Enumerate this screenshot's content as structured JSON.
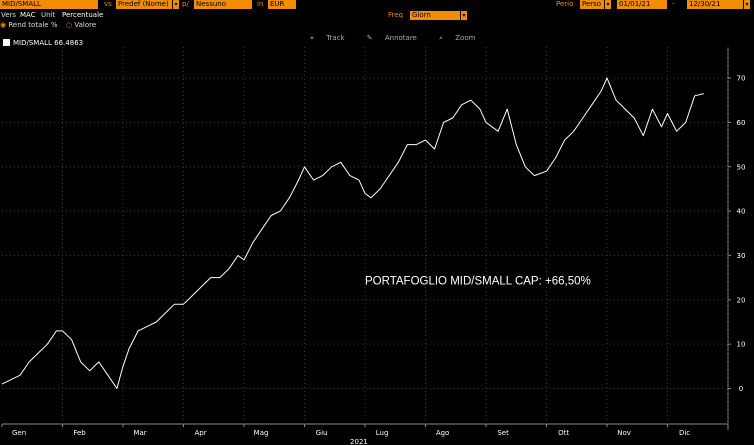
{
  "toolbar": {
    "security": "MID/SMALL",
    "vs_label": "vs",
    "vs_value": "Predef (Nome)",
    "p_label": "p/",
    "p_value": "Nessuno",
    "in_label": "in",
    "currency": "EUR",
    "period_label": "Perio",
    "period_value": "Perso",
    "start_date": "01/01/21",
    "end_date": "12/30/21",
    "vers_label": "Vers",
    "vers_value": "MAC",
    "unit_label": "Unit",
    "unit_value": "Percentuale",
    "freq_label": "Freq",
    "freq_value": "Giorn",
    "radio_rend": "Rend totale %",
    "radio_valore": "Valore",
    "tool_track": "Track",
    "tool_annotate": "Annotare",
    "tool_zoom": "Zoom"
  },
  "legend": {
    "series_label": "MID/SMALL 66.4863"
  },
  "colors": {
    "accent": "#f28c00",
    "line": "#ffffff",
    "background": "#000000",
    "grid": "#3a3a3a"
  },
  "chart_data": {
    "type": "line",
    "annotation": "PORTAFOGLIO MID/SMALL CAP: +66,50%",
    "x_tick_labels": [
      "Gen",
      "Feb",
      "Mar",
      "Apr",
      "Mag",
      "Giu",
      "Lug",
      "Ago",
      "Set",
      "Ott",
      "Nov",
      "Dic"
    ],
    "x_year_label": "2021",
    "y_ticks": [
      0,
      10,
      20,
      30,
      40,
      50,
      60,
      70
    ],
    "ylim": [
      -8,
      77
    ],
    "grid": true,
    "series": [
      {
        "name": "MID/SMALL",
        "last_value": 66.4863,
        "x": [
          0,
          0.15,
          0.3,
          0.45,
          0.6,
          0.75,
          0.9,
          1.0,
          1.15,
          1.3,
          1.45,
          1.6,
          1.75,
          1.9,
          2.0,
          2.1,
          2.25,
          2.4,
          2.55,
          2.7,
          2.85,
          3.0,
          3.15,
          3.3,
          3.45,
          3.6,
          3.75,
          3.9,
          4.0,
          4.15,
          4.3,
          4.45,
          4.6,
          4.75,
          4.9,
          5.0,
          5.15,
          5.3,
          5.45,
          5.6,
          5.75,
          5.9,
          6.0,
          6.1,
          6.25,
          6.4,
          6.55,
          6.7,
          6.85,
          7.0,
          7.15,
          7.3,
          7.45,
          7.6,
          7.75,
          7.9,
          8.0,
          8.1,
          8.2,
          8.35,
          8.5,
          8.65,
          8.8,
          9.0,
          9.15,
          9.3,
          9.45,
          9.6,
          9.75,
          9.9,
          10.0,
          10.15,
          10.3,
          10.45,
          10.6,
          10.75,
          10.9,
          11.0,
          11.15,
          11.3,
          11.45,
          11.6
        ],
        "values": [
          1,
          2,
          3,
          6,
          8,
          10,
          13,
          13,
          11,
          6,
          4,
          6,
          3,
          0,
          5,
          9,
          13,
          14,
          15,
          17,
          19,
          19,
          21,
          23,
          25,
          25,
          27,
          30,
          29,
          33,
          36,
          39,
          40,
          43,
          47,
          50,
          47,
          48,
          50,
          51,
          48,
          47,
          44,
          43,
          45,
          48,
          51,
          55,
          55,
          56,
          54,
          60,
          61,
          64,
          65,
          63,
          60,
          59,
          58,
          63,
          55,
          50,
          48,
          49,
          52,
          56,
          58,
          61,
          64,
          67,
          70,
          65,
          63,
          61,
          57,
          63,
          59,
          62,
          58,
          60,
          66,
          66.5
        ]
      }
    ]
  }
}
